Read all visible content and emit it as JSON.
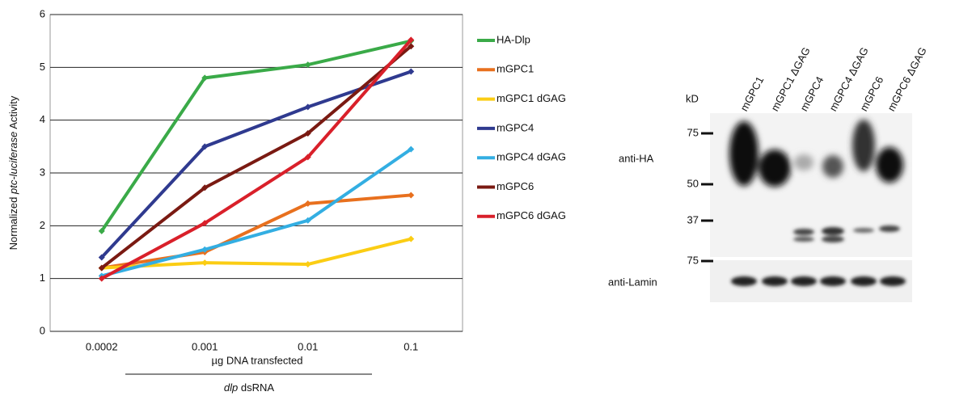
{
  "chart_data": {
    "type": "line",
    "ylabel_parts": [
      "Normalized ",
      "ptc-luciferase",
      " Activity"
    ],
    "xlabel": "µg DNA transfected",
    "xlabel2_parts": [
      "dlp",
      " dsRNA"
    ],
    "categories": [
      "0.0002",
      "0.001",
      "0.01",
      "0.1"
    ],
    "ylim": [
      0,
      6
    ],
    "yticks": [
      0,
      1,
      2,
      3,
      4,
      5,
      6
    ],
    "grid": true,
    "legend": "right",
    "series": [
      {
        "name": "HA-Dlp",
        "color": "#3aaa48",
        "values": [
          1.9,
          4.8,
          5.05,
          5.5
        ]
      },
      {
        "name": "mGPC1",
        "color": "#e8701e",
        "values": [
          1.2,
          1.5,
          2.42,
          2.58
        ]
      },
      {
        "name": "mGPC1 dGAG",
        "color": "#fbcd14",
        "values": [
          1.2,
          1.3,
          1.27,
          1.75
        ]
      },
      {
        "name": "mGPC4",
        "color": "#2f3a8f",
        "values": [
          1.4,
          3.5,
          4.25,
          4.92
        ]
      },
      {
        "name": "mGPC4 dGAG",
        "color": "#33aee2",
        "values": [
          1.05,
          1.55,
          2.1,
          3.45
        ]
      },
      {
        "name": "mGPC6",
        "color": "#7a1a12",
        "values": [
          1.2,
          2.72,
          3.75,
          5.4
        ]
      },
      {
        "name": "mGPC6 dGAG",
        "color": "#d9202a",
        "values": [
          1.0,
          2.05,
          3.3,
          5.52
        ]
      }
    ]
  },
  "blot": {
    "kd": "kD",
    "markers": [
      "75",
      "50",
      "37",
      "75"
    ],
    "lanes": [
      "mGPC1",
      "mGPC1 ΔGAG",
      "mGPC4",
      "mGPC4 ΔGAG",
      "mGPC6",
      "mGPC6 ΔGAG"
    ],
    "antibodies": [
      "anti-HA",
      "anti-Lamin"
    ]
  }
}
